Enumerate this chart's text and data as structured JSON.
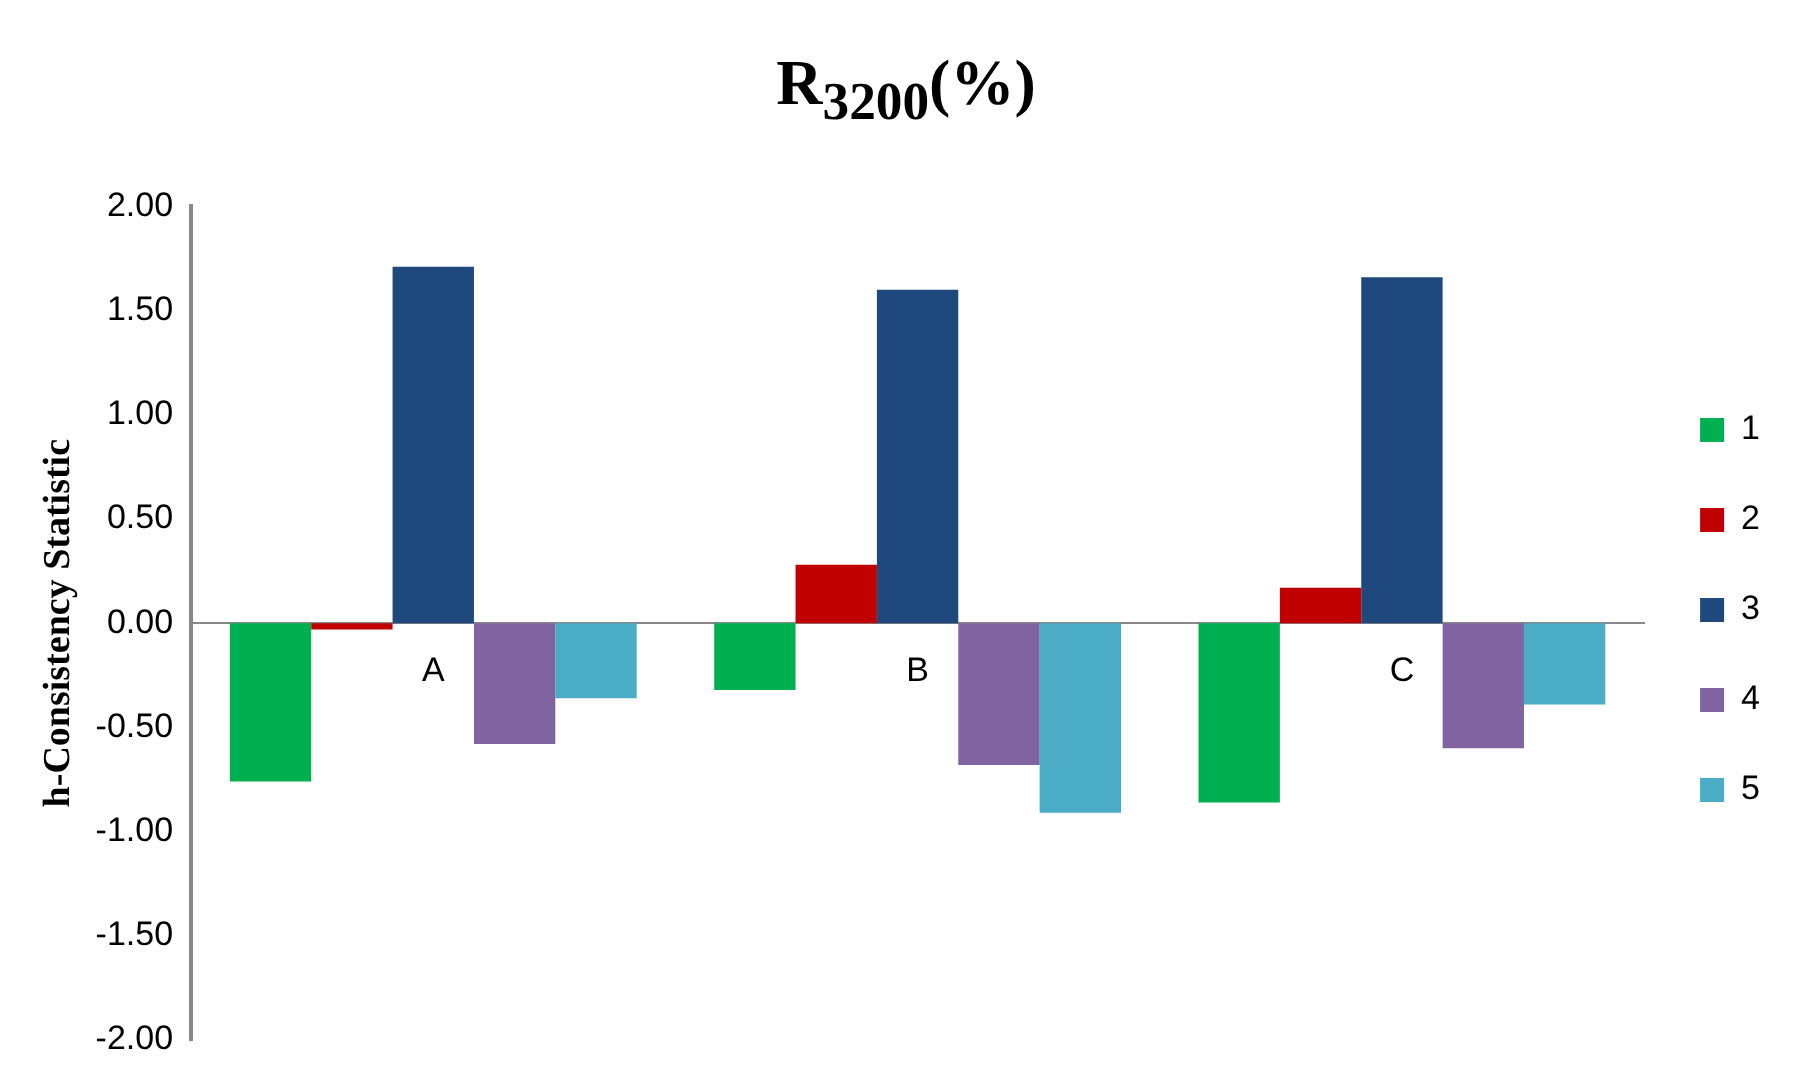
{
  "chart_data": {
    "type": "bar",
    "title": "R$_{3200}$(%)",
    "ylabel": "h-Consistency Statistic",
    "categories": [
      "A",
      "B",
      "C"
    ],
    "series": [
      {
        "name": "1",
        "color": "#00b050",
        "values": [
          -0.76,
          -0.32,
          -0.86
        ]
      },
      {
        "name": "2",
        "color": "#c00000",
        "values": [
          -0.03,
          0.28,
          0.17
        ]
      },
      {
        "name": "3",
        "color": "#1f497d",
        "values": [
          1.71,
          1.6,
          1.66
        ]
      },
      {
        "name": "4",
        "color": "#8064a2",
        "values": [
          -0.58,
          -0.68,
          -0.6
        ]
      },
      {
        "name": "5",
        "color": "#4bacc6",
        "values": [
          -0.36,
          -0.91,
          -0.39
        ]
      }
    ],
    "ylim": [
      -2,
      2
    ],
    "yticks": [
      {
        "value": -2,
        "label": "-2.00"
      },
      {
        "value": -1.5,
        "label": "-1.50"
      },
      {
        "value": -1,
        "label": "-1.00"
      },
      {
        "value": -0.5,
        "label": "-0.50"
      },
      {
        "value": 0,
        "label": "0.00"
      },
      {
        "value": 0.5,
        "label": "0.50"
      },
      {
        "value": 1,
        "label": "1.00"
      },
      {
        "value": 1.5,
        "label": "1.50"
      },
      {
        "value": 2,
        "label": "2.00"
      }
    ],
    "grid": false,
    "legend": "right"
  }
}
